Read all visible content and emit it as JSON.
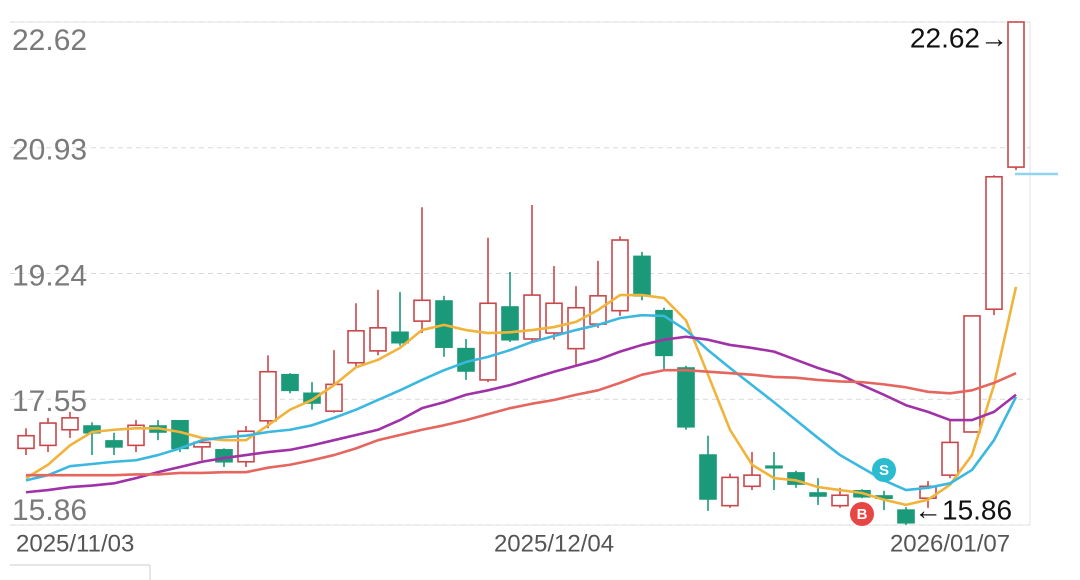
{
  "chart_data": {
    "type": "candlestick",
    "categories": [
      "2025/11/03",
      null,
      null,
      null,
      null,
      null,
      null,
      null,
      null,
      null,
      null,
      null,
      null,
      null,
      null,
      null,
      null,
      null,
      null,
      null,
      null,
      null,
      null,
      null,
      "2025/12/04",
      null,
      null,
      null,
      null,
      null,
      null,
      null,
      null,
      null,
      null,
      null,
      null,
      null,
      null,
      null,
      null,
      null,
      "2026/01/07",
      null,
      null,
      null
    ],
    "open": [
      16.89,
      16.93,
      17.14,
      17.19,
      16.99,
      16.93,
      17.19,
      17.26,
      16.91,
      16.87,
      16.71,
      17.26,
      17.88,
      17.63,
      17.39,
      18.04,
      18.2,
      18.45,
      18.6,
      18.87,
      18.23,
      17.81,
      18.79,
      18.36,
      18.44,
      18.23,
      18.56,
      18.74,
      19.47,
      18.74,
      17.97,
      16.8,
      16.12,
      16.38,
      16.65,
      16.56,
      16.29,
      16.12,
      16.32,
      16.25,
      16.06,
      16.22,
      16.53,
      17.11,
      18.76,
      20.67
    ],
    "high": [
      17.16,
      17.3,
      17.38,
      17.24,
      17.1,
      17.27,
      17.27,
      17.27,
      17.04,
      16.89,
      17.19,
      18.14,
      17.9,
      17.78,
      18.21,
      18.84,
      19.02,
      18.99,
      20.13,
      18.94,
      18.36,
      19.72,
      19.26,
      20.16,
      19.34,
      19.07,
      19.41,
      19.74,
      19.53,
      18.78,
      18.0,
      17.06,
      16.55,
      16.84,
      16.84,
      16.59,
      16.49,
      16.36,
      16.34,
      16.32,
      16.1,
      16.45,
      17.27,
      18.67,
      20.56,
      22.62
    ],
    "low": [
      16.8,
      16.84,
      17.03,
      16.8,
      16.8,
      16.84,
      17.0,
      16.84,
      16.73,
      16.64,
      16.64,
      17.16,
      17.63,
      17.41,
      17.37,
      17.98,
      18.14,
      18.27,
      18.44,
      18.12,
      17.81,
      17.78,
      18.32,
      18.33,
      18.35,
      18.01,
      18.51,
      18.67,
      18.88,
      17.94,
      17.14,
      16.05,
      16.09,
      16.33,
      16.33,
      16.36,
      16.13,
      16.09,
      16.22,
      16.06,
      15.86,
      16.09,
      16.49,
      17.11,
      18.68,
      20.63
    ],
    "close": [
      17.06,
      17.23,
      17.3,
      17.1,
      16.91,
      17.2,
      17.11,
      16.89,
      16.97,
      16.71,
      17.12,
      17.92,
      17.67,
      17.5,
      17.75,
      18.47,
      18.51,
      18.31,
      18.88,
      18.25,
      17.93,
      18.84,
      18.35,
      18.95,
      18.84,
      18.78,
      18.94,
      19.69,
      18.94,
      18.14,
      17.18,
      16.21,
      16.5,
      16.53,
      16.63,
      16.41,
      16.25,
      16.26,
      16.24,
      16.22,
      15.89,
      16.38,
      16.97,
      18.67,
      20.54,
      22.62
    ],
    "up_color": "#c9474a",
    "down_color": "#1a9a78",
    "series": [
      {
        "color": "#f0b43c",
        "values": [
          16.49,
          16.67,
          16.93,
          17.11,
          17.14,
          17.16,
          17.16,
          17.11,
          17.03,
          17.0,
          17.0,
          17.2,
          17.41,
          17.54,
          17.74,
          17.98,
          18.08,
          18.24,
          18.48,
          18.55,
          18.48,
          18.44,
          18.45,
          18.48,
          18.52,
          18.59,
          18.75,
          18.95,
          18.95,
          18.91,
          18.61,
          17.88,
          17.14,
          16.67,
          16.49,
          16.46,
          16.37,
          16.33,
          16.29,
          16.2,
          16.13,
          16.2,
          16.4,
          16.8,
          17.74,
          19.06
        ]
      },
      {
        "color": "#3bb8e0",
        "values": [
          16.46,
          16.53,
          16.65,
          16.68,
          16.71,
          16.73,
          16.8,
          16.89,
          17.0,
          17.04,
          17.06,
          17.11,
          17.14,
          17.2,
          17.3,
          17.41,
          17.54,
          17.67,
          17.81,
          17.94,
          18.05,
          18.12,
          18.21,
          18.32,
          18.4,
          18.48,
          18.55,
          18.64,
          18.68,
          18.67,
          18.48,
          18.21,
          17.97,
          17.74,
          17.51,
          17.27,
          17.03,
          16.8,
          16.63,
          16.46,
          16.33,
          16.36,
          16.42,
          16.6,
          17.0,
          17.58
        ]
      },
      {
        "color": "#a032a8",
        "values": [
          16.3,
          16.33,
          16.37,
          16.39,
          16.42,
          16.49,
          16.57,
          16.64,
          16.71,
          16.76,
          16.8,
          16.84,
          16.87,
          16.93,
          17.0,
          17.07,
          17.14,
          17.27,
          17.43,
          17.51,
          17.61,
          17.67,
          17.74,
          17.83,
          17.92,
          18.0,
          18.08,
          18.19,
          18.28,
          18.35,
          18.39,
          18.35,
          18.28,
          18.24,
          18.19,
          18.08,
          17.97,
          17.88,
          17.74,
          17.61,
          17.47,
          17.38,
          17.27,
          17.27,
          17.38,
          17.61
        ]
      },
      {
        "color": "#e5665e",
        "values": [
          16.53,
          16.53,
          16.53,
          16.53,
          16.53,
          16.54,
          16.54,
          16.56,
          16.56,
          16.57,
          16.57,
          16.63,
          16.67,
          16.73,
          16.8,
          16.89,
          17.0,
          17.07,
          17.14,
          17.2,
          17.27,
          17.35,
          17.43,
          17.49,
          17.54,
          17.61,
          17.67,
          17.77,
          17.88,
          17.94,
          17.94,
          17.92,
          17.9,
          17.88,
          17.85,
          17.84,
          17.81,
          17.79,
          17.78,
          17.75,
          17.71,
          17.65,
          17.63,
          17.67,
          17.77,
          17.9
        ]
      }
    ],
    "ylim": [
      15.86,
      22.62
    ],
    "yticks": [
      22.62,
      20.93,
      19.24,
      17.55,
      15.86
    ],
    "grid": true,
    "annotations": [
      "22.62→",
      "←15.86"
    ],
    "signals": [
      {
        "label": "S",
        "color": "#2bbcd0"
      },
      {
        "label": "B",
        "color": "#e84545"
      }
    ]
  }
}
